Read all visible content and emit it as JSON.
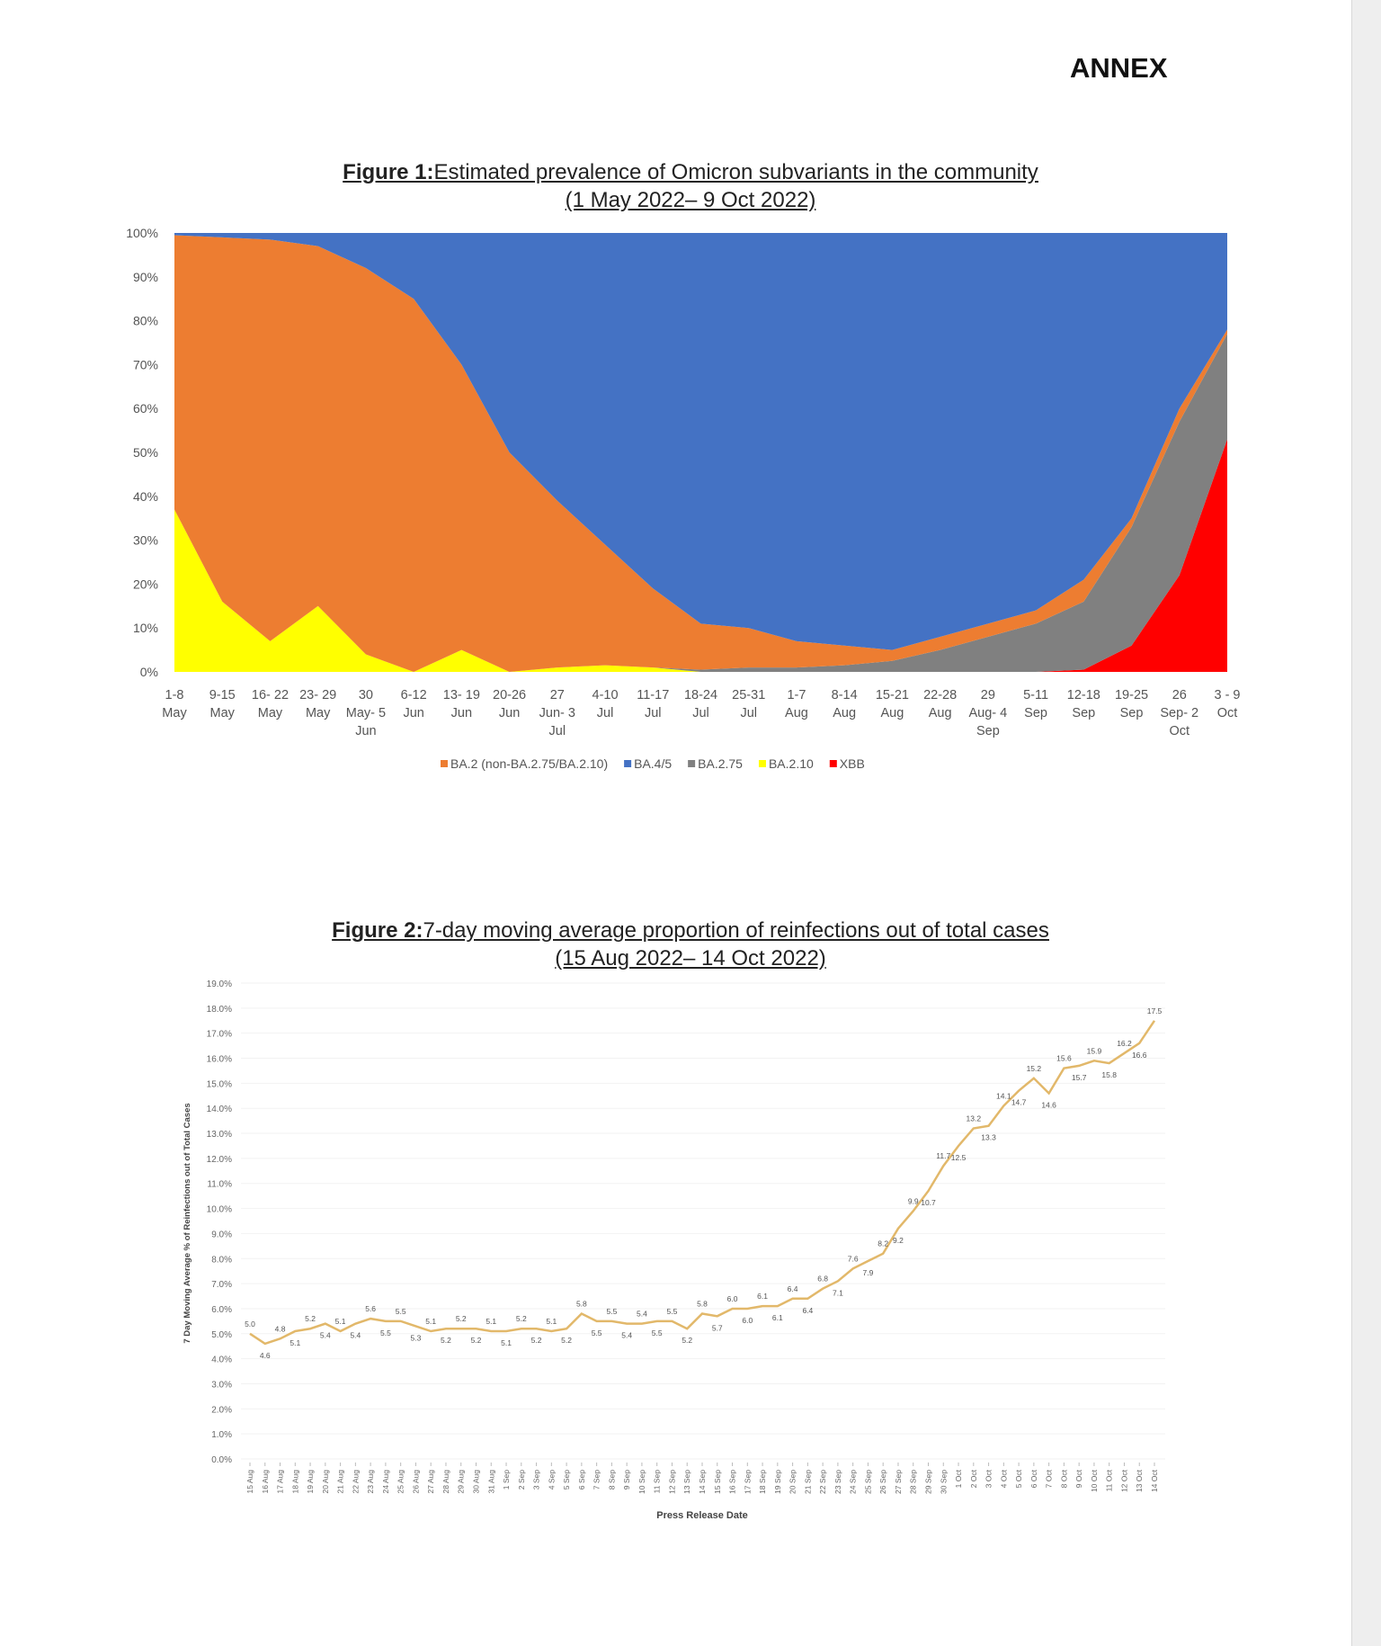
{
  "annex": "ANNEX",
  "chart_data": [
    {
      "type": "area",
      "stacked": true,
      "title_bold": "Figure 1:",
      "title": "Estimated prevalence of Omicron subvariants in the community",
      "subtitle": "(1 May 2022– 9 Oct 2022)",
      "ylim": [
        0,
        100
      ],
      "yticks": [
        "0%",
        "10%",
        "20%",
        "30%",
        "40%",
        "50%",
        "60%",
        "70%",
        "80%",
        "90%",
        "100%"
      ],
      "categories": [
        "1-8|May",
        "9-15|May",
        "16- 22|May",
        "23- 29|May",
        "30|May- 5|Jun",
        "6-12|Jun",
        "13- 19|Jun",
        "20-26|Jun",
        "27|Jun- 3|Jul",
        "4-10|Jul",
        "11-17|Jul",
        "18-24|Jul",
        "25-31|Jul",
        "1-7|Aug",
        "8-14|Aug",
        "15-21|Aug",
        "22-28|Aug",
        "29|Aug- 4|Sep",
        "5-11|Sep",
        "12-18|Sep",
        "19-25|Sep",
        "26|Sep- 2|Oct",
        "3 - 9|Oct"
      ],
      "legend_position": "bottom",
      "legend": [
        "BA.2 (non-BA.2.75/BA.2.10)",
        "BA.4/5",
        "BA.2.75",
        "BA.2.10",
        "XBB"
      ],
      "series": [
        {
          "name": "XBB",
          "color": "#ff0000",
          "values": [
            0,
            0,
            0,
            0,
            0,
            0,
            0,
            0,
            0,
            0,
            0,
            0,
            0,
            0,
            0,
            0,
            0,
            0,
            0,
            0.5,
            6,
            22,
            53
          ]
        },
        {
          "name": "BA.2.10",
          "color": "#ffff00",
          "values": [
            37,
            16,
            7,
            15,
            4,
            0,
            5,
            0,
            1,
            1.5,
            1,
            0,
            0,
            0,
            0,
            0,
            0,
            0,
            0,
            0,
            0,
            0,
            0
          ]
        },
        {
          "name": "BA.2.75",
          "color": "#808080",
          "values": [
            0,
            0,
            0,
            0,
            0,
            0,
            0,
            0,
            0,
            0,
            0,
            0.5,
            1,
            1,
            1.5,
            2.5,
            5,
            8,
            11,
            15.5,
            27,
            35,
            24
          ]
        },
        {
          "name": "BA.2 (non-BA.2.75/BA.2.10)",
          "color": "#ed7d31",
          "values": [
            62.5,
            83,
            91.5,
            82,
            88,
            85,
            65,
            50,
            38,
            27.5,
            18,
            10.5,
            9,
            6,
            4.5,
            2.5,
            3,
            3,
            3,
            5,
            2,
            3,
            1
          ]
        },
        {
          "name": "BA.4/5",
          "color": "#4472c4",
          "values": [
            0.5,
            1,
            1.5,
            3,
            8,
            15,
            30,
            50,
            61,
            71,
            81,
            89,
            90,
            93,
            94,
            95,
            92,
            89,
            86,
            79,
            65,
            40,
            22
          ]
        }
      ]
    },
    {
      "type": "line",
      "title_bold": "Figure 2:",
      "title": "7-day moving average proportion of reinfections out of total cases",
      "subtitle": "(15 Aug 2022– 14 Oct 2022)",
      "xlabel": "Press Release Date",
      "ylabel": "7 Day Moving Average % of Reinfections out of Total Cases",
      "ylim": [
        0,
        19
      ],
      "yticks": [
        "0.0%",
        "1.0%",
        "2.0%",
        "3.0%",
        "4.0%",
        "5.0%",
        "6.0%",
        "7.0%",
        "8.0%",
        "9.0%",
        "10.0%",
        "11.0%",
        "12.0%",
        "13.0%",
        "14.0%",
        "15.0%",
        "16.0%",
        "17.0%",
        "18.0%",
        "19.0%"
      ],
      "color": "#e2b86a",
      "categories": [
        "15 Aug",
        "16 Aug",
        "17 Aug",
        "18 Aug",
        "19 Aug",
        "20 Aug",
        "21 Aug",
        "22 Aug",
        "23 Aug",
        "24 Aug",
        "25 Aug",
        "26 Aug",
        "27 Aug",
        "28 Aug",
        "29 Aug",
        "30 Aug",
        "31 Aug",
        "1 Sep",
        "2 Sep",
        "3 Sep",
        "4 Sep",
        "5 Sep",
        "6 Sep",
        "7 Sep",
        "8 Sep",
        "9 Sep",
        "10 Sep",
        "11 Sep",
        "12 Sep",
        "13 Sep",
        "14 Sep",
        "15 Sep",
        "16 Sep",
        "17 Sep",
        "18 Sep",
        "19 Sep",
        "20 Sep",
        "21 Sep",
        "22 Sep",
        "23 Sep",
        "24 Sep",
        "25 Sep",
        "26 Sep",
        "27 Sep",
        "28 Sep",
        "29 Sep",
        "30 Sep",
        "1 Oct",
        "2 Oct",
        "3 Oct",
        "4 Oct",
        "5 Oct",
        "6 Oct",
        "7 Oct",
        "8 Oct",
        "9 Oct",
        "10 Oct",
        "11 Oct",
        "12 Oct",
        "13 Oct",
        "14 Oct"
      ],
      "values": [
        5.0,
        4.6,
        4.8,
        5.1,
        5.2,
        5.4,
        5.1,
        5.4,
        5.6,
        5.5,
        5.5,
        5.3,
        5.1,
        5.2,
        5.2,
        5.2,
        5.1,
        5.1,
        5.2,
        5.2,
        5.1,
        5.2,
        5.8,
        5.5,
        5.5,
        5.4,
        5.4,
        5.5,
        5.5,
        5.2,
        5.8,
        5.7,
        6.0,
        6.0,
        6.1,
        6.1,
        6.4,
        6.4,
        6.8,
        7.1,
        7.6,
        7.9,
        8.2,
        9.2,
        9.9,
        10.7,
        11.7,
        12.5,
        13.2,
        13.3,
        14.1,
        14.7,
        15.2,
        14.6,
        15.6,
        15.7,
        15.9,
        15.8,
        16.2,
        16.6,
        17.5
      ]
    }
  ]
}
